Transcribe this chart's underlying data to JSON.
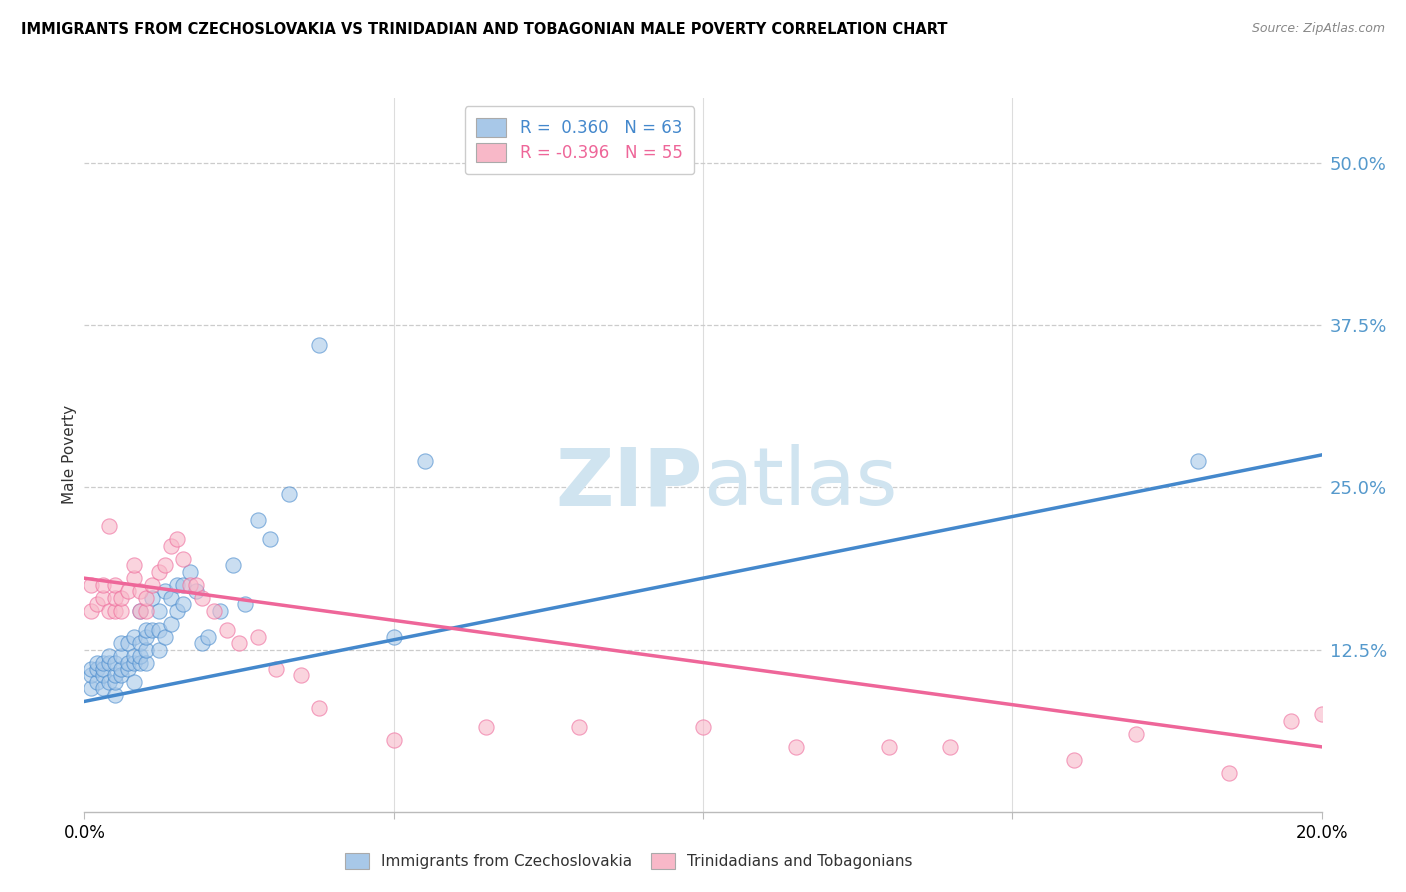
{
  "title": "IMMIGRANTS FROM CZECHOSLOVAKIA VS TRINIDADIAN AND TOBAGONIAN MALE POVERTY CORRELATION CHART",
  "source": "Source: ZipAtlas.com",
  "ylabel": "Male Poverty",
  "y_ticks": [
    "12.5%",
    "25.0%",
    "37.5%",
    "50.0%"
  ],
  "y_tick_vals": [
    0.125,
    0.25,
    0.375,
    0.5
  ],
  "xlim": [
    0.0,
    0.2
  ],
  "ylim": [
    0.0,
    0.55
  ],
  "color_blue": "#a8c8e8",
  "color_pink": "#f8b8c8",
  "line_color_blue": "#4488cc",
  "line_color_pink": "#ee6699",
  "tick_label_color": "#5599cc",
  "watermark_color": "#d0e4f0",
  "blue_scatter_x": [
    0.001,
    0.001,
    0.001,
    0.002,
    0.002,
    0.002,
    0.003,
    0.003,
    0.003,
    0.003,
    0.004,
    0.004,
    0.004,
    0.005,
    0.005,
    0.005,
    0.005,
    0.006,
    0.006,
    0.006,
    0.006,
    0.007,
    0.007,
    0.007,
    0.008,
    0.008,
    0.008,
    0.008,
    0.009,
    0.009,
    0.009,
    0.009,
    0.01,
    0.01,
    0.01,
    0.01,
    0.011,
    0.011,
    0.012,
    0.012,
    0.012,
    0.013,
    0.013,
    0.014,
    0.014,
    0.015,
    0.015,
    0.016,
    0.016,
    0.017,
    0.018,
    0.019,
    0.02,
    0.022,
    0.024,
    0.026,
    0.028,
    0.03,
    0.033,
    0.038,
    0.05,
    0.055,
    0.18
  ],
  "blue_scatter_y": [
    0.095,
    0.105,
    0.11,
    0.1,
    0.11,
    0.115,
    0.095,
    0.105,
    0.11,
    0.115,
    0.1,
    0.115,
    0.12,
    0.09,
    0.1,
    0.105,
    0.115,
    0.105,
    0.11,
    0.12,
    0.13,
    0.11,
    0.115,
    0.13,
    0.1,
    0.115,
    0.12,
    0.135,
    0.115,
    0.12,
    0.13,
    0.155,
    0.115,
    0.125,
    0.135,
    0.14,
    0.14,
    0.165,
    0.125,
    0.14,
    0.155,
    0.17,
    0.135,
    0.145,
    0.165,
    0.155,
    0.175,
    0.16,
    0.175,
    0.185,
    0.17,
    0.13,
    0.135,
    0.155,
    0.19,
    0.16,
    0.225,
    0.21,
    0.245,
    0.36,
    0.135,
    0.27,
    0.27
  ],
  "pink_scatter_x": [
    0.001,
    0.001,
    0.002,
    0.003,
    0.003,
    0.004,
    0.004,
    0.005,
    0.005,
    0.005,
    0.006,
    0.006,
    0.007,
    0.008,
    0.008,
    0.009,
    0.009,
    0.01,
    0.01,
    0.011,
    0.012,
    0.013,
    0.014,
    0.015,
    0.016,
    0.017,
    0.018,
    0.019,
    0.021,
    0.023,
    0.025,
    0.028,
    0.031,
    0.035,
    0.038,
    0.05,
    0.065,
    0.08,
    0.1,
    0.115,
    0.13,
    0.14,
    0.16,
    0.17,
    0.185,
    0.195,
    0.2
  ],
  "pink_scatter_y": [
    0.155,
    0.175,
    0.16,
    0.165,
    0.175,
    0.155,
    0.22,
    0.155,
    0.165,
    0.175,
    0.155,
    0.165,
    0.17,
    0.18,
    0.19,
    0.155,
    0.17,
    0.155,
    0.165,
    0.175,
    0.185,
    0.19,
    0.205,
    0.21,
    0.195,
    0.175,
    0.175,
    0.165,
    0.155,
    0.14,
    0.13,
    0.135,
    0.11,
    0.105,
    0.08,
    0.055,
    0.065,
    0.065,
    0.065,
    0.05,
    0.05,
    0.05,
    0.04,
    0.06,
    0.03,
    0.07,
    0.075
  ],
  "blue_line_x": [
    0.0,
    0.2
  ],
  "blue_line_y": [
    0.085,
    0.275
  ],
  "pink_line_x": [
    0.0,
    0.2
  ],
  "pink_line_y": [
    0.18,
    0.05
  ]
}
